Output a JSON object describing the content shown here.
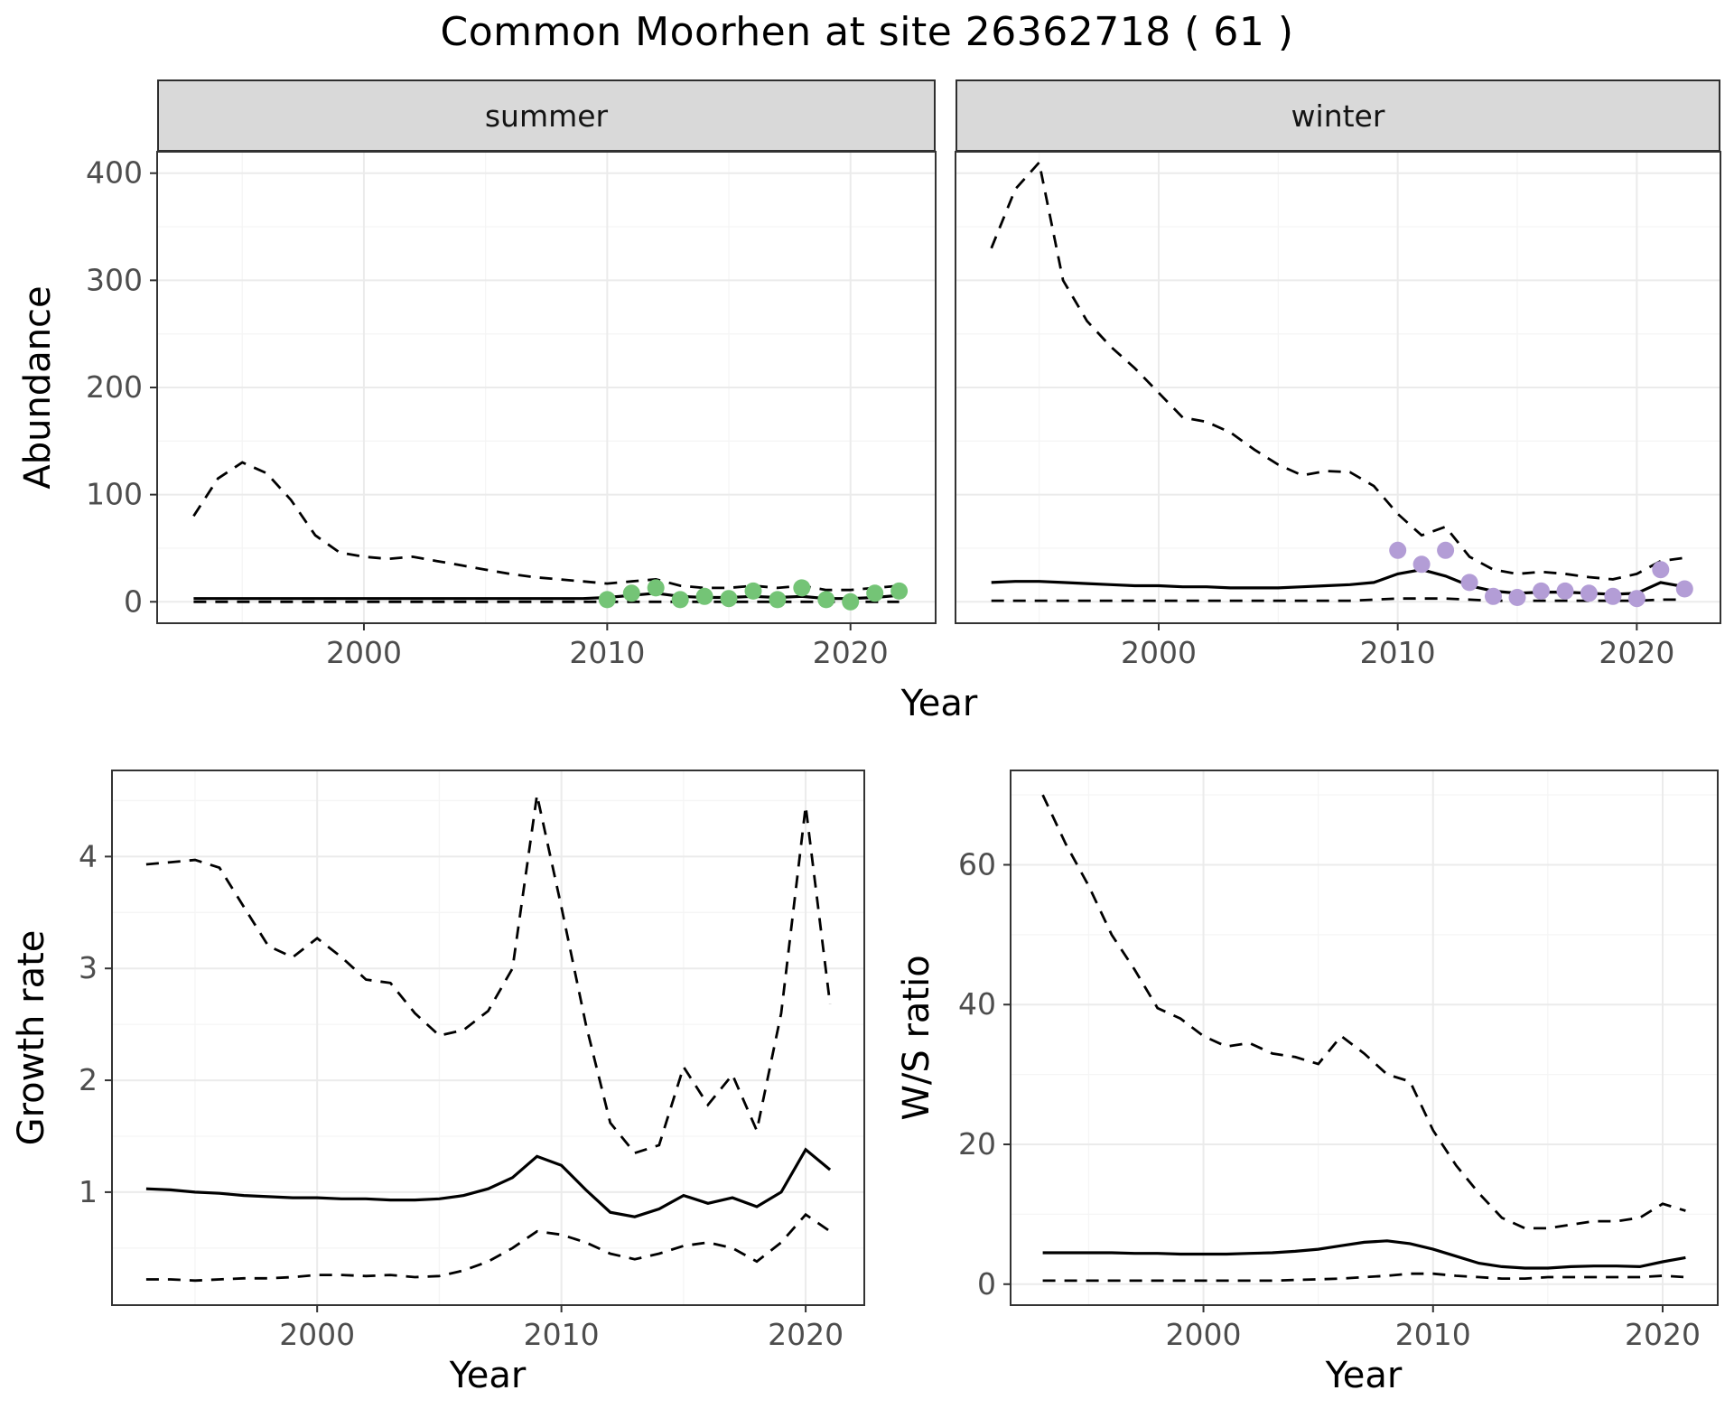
{
  "title": "Common Moorhen at site 26362718 ( 61 )",
  "colors": {
    "line": "#000000",
    "summer_points": "#74c476",
    "winter_points": "#b39dd6",
    "strip_bg": "#d9d9d9",
    "panel_border": "#333333",
    "grid_major": "#ebebeb",
    "grid_minor": "#f5f5f5",
    "tick_text": "#4d4d4d"
  },
  "chart_data": [
    {
      "id": "abundance-summer",
      "type": "line",
      "facet_label": "summer",
      "xlabel": "Year",
      "ylabel": "Abundance",
      "xlim": [
        1991.5,
        2023.5
      ],
      "ylim": [
        -20,
        420
      ],
      "xticks": [
        2000,
        2010,
        2020
      ],
      "yticks": [
        0,
        100,
        200,
        300,
        400
      ],
      "grid": true,
      "x": [
        1993,
        1994,
        1995,
        1996,
        1997,
        1998,
        1999,
        2000,
        2001,
        2002,
        2003,
        2004,
        2005,
        2006,
        2007,
        2008,
        2009,
        2010,
        2011,
        2012,
        2013,
        2014,
        2015,
        2016,
        2017,
        2018,
        2019,
        2020,
        2021,
        2022
      ],
      "series": [
        {
          "name": "median",
          "style": "solid",
          "values": [
            3,
            3,
            3,
            3,
            3,
            3,
            3,
            3,
            3,
            3,
            3,
            3,
            3,
            3,
            3,
            3,
            3,
            4,
            6,
            8,
            5,
            4,
            4,
            5,
            4,
            5,
            3,
            3,
            4,
            6
          ]
        },
        {
          "name": "upper-ci",
          "style": "dashed",
          "values": [
            80,
            115,
            130,
            120,
            95,
            62,
            46,
            42,
            40,
            42,
            38,
            34,
            30,
            26,
            23,
            21,
            19,
            17,
            19,
            21,
            15,
            13,
            13,
            15,
            13,
            15,
            11,
            11,
            13,
            15
          ]
        },
        {
          "name": "lower-ci",
          "style": "dashed",
          "values": [
            0,
            0,
            0,
            0,
            0,
            0,
            0,
            0,
            0,
            0,
            0,
            0,
            0,
            0,
            0,
            0,
            0,
            0,
            0,
            0,
            0,
            0,
            0,
            0,
            0,
            0,
            0,
            0,
            0,
            0
          ]
        }
      ],
      "points": {
        "name": "observed-summer",
        "color": "#74c476",
        "x": [
          2010,
          2011,
          2012,
          2013,
          2014,
          2015,
          2016,
          2017,
          2018,
          2019,
          2020,
          2021,
          2022
        ],
        "y": [
          2,
          8,
          13,
          2,
          5,
          3,
          10,
          2,
          13,
          2,
          0,
          8,
          10
        ]
      }
    },
    {
      "id": "abundance-winter",
      "type": "line",
      "facet_label": "winter",
      "xlabel": "Year",
      "ylabel": "Abundance",
      "xlim": [
        1991.5,
        2023.5
      ],
      "ylim": [
        -20,
        420
      ],
      "xticks": [
        2000,
        2010,
        2020
      ],
      "yticks": [
        0,
        100,
        200,
        300,
        400
      ],
      "grid": true,
      "x": [
        1993,
        1994,
        1995,
        1996,
        1997,
        1998,
        1999,
        2000,
        2001,
        2002,
        2003,
        2004,
        2005,
        2006,
        2007,
        2008,
        2009,
        2010,
        2011,
        2012,
        2013,
        2014,
        2015,
        2016,
        2017,
        2018,
        2019,
        2020,
        2021,
        2022
      ],
      "series": [
        {
          "name": "median",
          "style": "solid",
          "values": [
            18,
            19,
            19,
            18,
            17,
            16,
            15,
            15,
            14,
            14,
            13,
            13,
            13,
            14,
            15,
            16,
            18,
            26,
            30,
            24,
            15,
            10,
            8,
            9,
            9,
            8,
            7,
            8,
            18,
            14
          ]
        },
        {
          "name": "upper-ci",
          "style": "dashed",
          "values": [
            330,
            385,
            410,
            300,
            262,
            238,
            218,
            195,
            172,
            168,
            158,
            142,
            128,
            118,
            122,
            121,
            108,
            82,
            62,
            70,
            42,
            30,
            26,
            28,
            26,
            23,
            21,
            26,
            38,
            41
          ]
        },
        {
          "name": "lower-ci",
          "style": "dashed",
          "values": [
            1,
            1,
            1,
            1,
            1,
            1,
            1,
            1,
            1,
            1,
            1,
            1,
            1,
            1,
            1,
            1,
            2,
            3,
            3,
            3,
            2,
            1,
            1,
            1,
            1,
            1,
            1,
            1,
            2,
            2
          ]
        }
      ],
      "points": {
        "name": "observed-winter",
        "color": "#b39dd6",
        "x": [
          2010,
          2011,
          2012,
          2013,
          2014,
          2015,
          2016,
          2017,
          2018,
          2019,
          2020,
          2021,
          2022
        ],
        "y": [
          48,
          35,
          48,
          18,
          5,
          4,
          10,
          10,
          8,
          5,
          3,
          30,
          12
        ]
      }
    },
    {
      "id": "growth-rate",
      "type": "line",
      "xlabel": "Year",
      "ylabel": "Growth rate",
      "xlim": [
        1991.6,
        2022.4
      ],
      "ylim": [
        -0.01,
        4.77
      ],
      "xticks": [
        2000,
        2010,
        2020
      ],
      "yticks": [
        1,
        2,
        3,
        4
      ],
      "grid": true,
      "x": [
        1993,
        1994,
        1995,
        1996,
        1997,
        1998,
        1999,
        2000,
        2001,
        2002,
        2003,
        2004,
        2005,
        2006,
        2007,
        2008,
        2009,
        2010,
        2011,
        2012,
        2013,
        2014,
        2015,
        2016,
        2017,
        2018,
        2019,
        2020,
        2021
      ],
      "series": [
        {
          "name": "median",
          "style": "solid",
          "values": [
            1.03,
            1.02,
            1.0,
            0.99,
            0.97,
            0.96,
            0.95,
            0.95,
            0.94,
            0.94,
            0.93,
            0.93,
            0.94,
            0.97,
            1.03,
            1.13,
            1.32,
            1.24,
            1.02,
            0.82,
            0.78,
            0.85,
            0.97,
            0.9,
            0.95,
            0.87,
            1.0,
            1.38,
            1.2
          ]
        },
        {
          "name": "upper-ci",
          "style": "dashed",
          "values": [
            3.93,
            3.95,
            3.97,
            3.9,
            3.55,
            3.2,
            3.1,
            3.27,
            3.1,
            2.9,
            2.87,
            2.6,
            2.4,
            2.45,
            2.62,
            3.0,
            4.55,
            3.55,
            2.5,
            1.62,
            1.35,
            1.42,
            2.12,
            1.78,
            2.05,
            1.55,
            2.6,
            4.45,
            2.68
          ]
        },
        {
          "name": "lower-ci",
          "style": "dashed",
          "values": [
            0.22,
            0.22,
            0.21,
            0.22,
            0.23,
            0.23,
            0.24,
            0.26,
            0.26,
            0.25,
            0.26,
            0.24,
            0.25,
            0.3,
            0.38,
            0.5,
            0.65,
            0.62,
            0.55,
            0.45,
            0.4,
            0.45,
            0.52,
            0.55,
            0.5,
            0.38,
            0.55,
            0.8,
            0.65
          ]
        }
      ]
    },
    {
      "id": "ws-ratio",
      "type": "line",
      "xlabel": "Year",
      "ylabel": "W/S ratio",
      "xlim": [
        1991.6,
        2022.4
      ],
      "ylim": [
        -3,
        73.5
      ],
      "xticks": [
        2000,
        2010,
        2020
      ],
      "yticks": [
        0,
        20,
        40,
        60
      ],
      "grid": true,
      "x": [
        1993,
        1994,
        1995,
        1996,
        1997,
        1998,
        1999,
        2000,
        2001,
        2002,
        2003,
        2004,
        2005,
        2006,
        2007,
        2008,
        2009,
        2010,
        2011,
        2012,
        2013,
        2014,
        2015,
        2016,
        2017,
        2018,
        2019,
        2020,
        2021
      ],
      "series": [
        {
          "name": "median",
          "style": "solid",
          "values": [
            4.5,
            4.5,
            4.5,
            4.5,
            4.4,
            4.4,
            4.3,
            4.3,
            4.3,
            4.4,
            4.5,
            4.7,
            5.0,
            5.5,
            6.0,
            6.2,
            5.8,
            5.0,
            4.0,
            3.0,
            2.5,
            2.3,
            2.3,
            2.5,
            2.6,
            2.6,
            2.5,
            3.2,
            3.8
          ]
        },
        {
          "name": "upper-ci",
          "style": "dashed",
          "values": [
            70,
            63,
            57,
            50,
            45,
            39.5,
            38,
            35.5,
            34,
            34.5,
            33,
            32.5,
            31.5,
            35.5,
            33,
            30,
            29,
            22,
            17,
            13,
            9.5,
            8,
            8,
            8.5,
            9,
            9,
            9.5,
            11.5,
            10.5
          ]
        },
        {
          "name": "lower-ci",
          "style": "dashed",
          "values": [
            0.5,
            0.5,
            0.5,
            0.5,
            0.5,
            0.5,
            0.5,
            0.5,
            0.5,
            0.5,
            0.5,
            0.6,
            0.7,
            0.8,
            1.0,
            1.2,
            1.5,
            1.5,
            1.2,
            1.0,
            0.8,
            0.8,
            1.0,
            1.0,
            1.0,
            1.0,
            1.0,
            1.2,
            1.0
          ]
        }
      ]
    }
  ]
}
